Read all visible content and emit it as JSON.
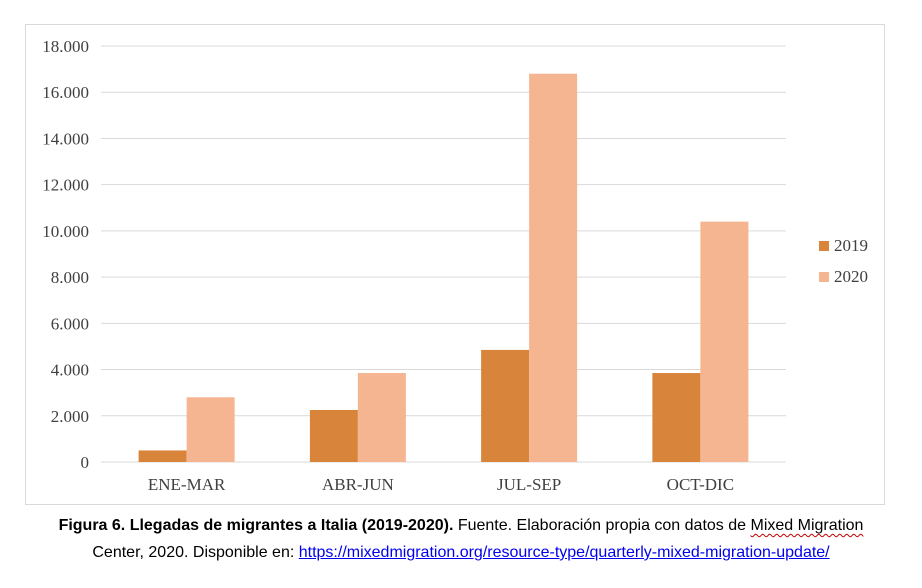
{
  "chart_data": {
    "type": "bar",
    "categories": [
      "ENE-MAR",
      "ABR-JUN",
      "JUL-SEP",
      "OCT-DIC"
    ],
    "series": [
      {
        "name": "2019",
        "values": [
          500,
          2250,
          4850,
          3850
        ],
        "color": "#d9843b"
      },
      {
        "name": "2020",
        "values": [
          2800,
          3850,
          16800,
          10400
        ],
        "color": "#f5b590"
      }
    ],
    "yticks": [
      "0",
      "2.000",
      "4.000",
      "6.000",
      "8.000",
      "10.000",
      "12.000",
      "14.000",
      "16.000",
      "18.000"
    ],
    "ylim": [
      0,
      18000
    ],
    "grid": true,
    "legend_position": "right",
    "gridline_color": "#d9d9d9"
  },
  "caption": {
    "bold": "Figura 6. Llegadas de migrantes a Italia (2019-2020).",
    "text1": " Fuente. Elaboración propia con datos de ",
    "squiggle": "Mixed Migration",
    "text2": "Center, 2020. Disponible en: ",
    "link": "https://mixedmigration.org/resource-type/quarterly-mixed-migration-update/"
  }
}
